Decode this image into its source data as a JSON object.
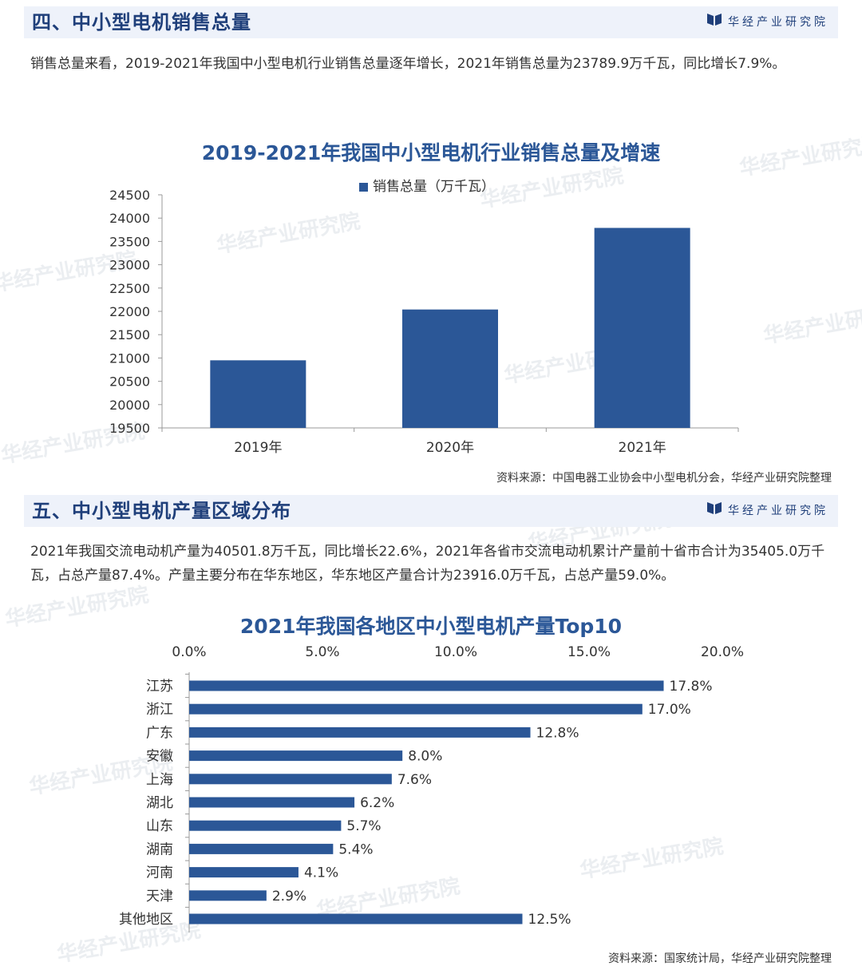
{
  "brand": "华经产业研究院",
  "watermark": "华经产业研究院",
  "section4": {
    "title": "四、中小型电机销售总量",
    "paragraph": "销售总量来看，2019-2021年我国中小型电机行业销售总量逐年增长，2021年销售总量为23789.9万千瓦，同比增长7.9%。",
    "source": "资料来源：中国电器工业协会中小型电机分会，华经产业研究院整理"
  },
  "section5": {
    "title": "五、中小型电机产量区域分布",
    "paragraph": "2021年我国交流电动机产量为40501.8万千瓦，同比增长22.6%，2021年各省市交流电动机累计产量前十省市合计为35405.0万千瓦，占总产量87.4%。产量主要分布在华东地区，华东地区产量合计为23916.0万千瓦，占总产量59.0%。",
    "source": "资料来源：国家统计局，华经产业研究院整理"
  },
  "colors": {
    "bar": "#2b5797",
    "header_bg": "#eef2fa",
    "title": "#1f3f7a"
  },
  "chart_data": [
    {
      "type": "bar",
      "title": "2019-2021年我国中小型电机行业销售总量及增速",
      "categories": [
        "2019年",
        "2020年",
        "2021年"
      ],
      "series": [
        {
          "name": "销售总量（万千瓦）",
          "values": [
            20950,
            22040,
            23789.9
          ]
        }
      ],
      "ylim": [
        19500,
        24500
      ],
      "yticks": [
        19500,
        20000,
        20500,
        21000,
        21500,
        22000,
        22500,
        23000,
        23500,
        24000,
        24500
      ],
      "legend": "top-center",
      "grid": false
    },
    {
      "type": "bar",
      "orientation": "horizontal",
      "title": "2021年我国各地区中小型电机产量Top10",
      "categories": [
        "江苏",
        "浙江",
        "广东",
        "安徽",
        "上海",
        "湖北",
        "山东",
        "湖南",
        "河南",
        "天津",
        "其他地区"
      ],
      "values": [
        17.8,
        17.0,
        12.8,
        8.0,
        7.6,
        6.2,
        5.7,
        5.4,
        4.1,
        2.9,
        12.5
      ],
      "value_labels": [
        "17.8%",
        "17.0%",
        "12.8%",
        "8.0%",
        "7.6%",
        "6.2%",
        "5.7%",
        "5.4%",
        "4.1%",
        "2.9%",
        "12.5%"
      ],
      "xlim": [
        0,
        20
      ],
      "xticks": [
        "0.0%",
        "5.0%",
        "10.0%",
        "15.0%",
        "20.0%"
      ],
      "axis_position": "top",
      "grid": false
    }
  ]
}
